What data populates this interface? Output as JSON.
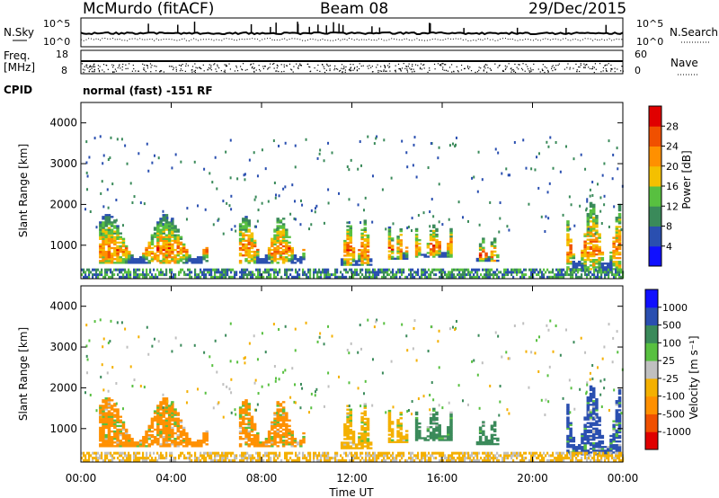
{
  "header": {
    "title": "McMurdo (fitACF)",
    "beam": "Beam 08",
    "date": "29/Dec/2015"
  },
  "noise_panel": {
    "left_label": "N.Sky",
    "right_label": "N.Search",
    "left_ticks": [
      "10^5",
      "10^0"
    ],
    "right_ticks": [
      "10^5",
      "10^0"
    ]
  },
  "freq_panel": {
    "left_label_1": "Freq.",
    "left_label_2": "[MHz]",
    "right_label": "Nave",
    "left_ticks": [
      "18",
      "8"
    ],
    "right_ticks": [
      "60",
      "0"
    ]
  },
  "cpid": {
    "label": "CPID",
    "value": "normal (fast) -151 RF"
  },
  "chart_data": [
    {
      "type": "heatmap",
      "quantity": "power",
      "xlabel": "",
      "ylabel": "Slant Range [km]",
      "xlim": [
        0,
        24
      ],
      "ylim": [
        180,
        4500
      ],
      "yticks": [
        "1000",
        "2000",
        "3000",
        "4000"
      ],
      "colorbar": {
        "label": "Power [dB]",
        "ticks": [
          "28",
          "24",
          "20",
          "16",
          "12",
          "8",
          "4"
        ],
        "colors": [
          "#1010ff",
          "#2a4fb0",
          "#3a8a5a",
          "#58c040",
          "#f4c000",
          "#ff9000",
          "#f05000",
          "#e00000"
        ]
      },
      "echo_regions": [
        {
          "t0": 0.8,
          "t1": 5.6,
          "r0": 550,
          "r1": 1750,
          "peak_r": 850,
          "vel_idx": 2
        },
        {
          "t0": 7.0,
          "t1": 9.9,
          "r0": 550,
          "r1": 1700,
          "peak_r": 900,
          "vel_idx": 2
        },
        {
          "t0": 11.5,
          "t1": 12.8,
          "r0": 500,
          "r1": 1600,
          "peak_r": 850,
          "vel_idx": 3
        },
        {
          "t0": 13.6,
          "t1": 14.4,
          "r0": 650,
          "r1": 1500,
          "peak_r": 900,
          "vel_idx": 3
        },
        {
          "t0": 14.8,
          "t1": 16.4,
          "r0": 700,
          "r1": 1500,
          "peak_r": 950,
          "vel_idx": 6
        },
        {
          "t0": 17.5,
          "t1": 18.4,
          "r0": 600,
          "r1": 1200,
          "peak_r": 750,
          "vel_idx": 6
        },
        {
          "t0": 21.5,
          "t1": 23.9,
          "r0": 350,
          "r1": 2050,
          "peak_r": 900,
          "vel_idx": 7
        }
      ]
    },
    {
      "type": "heatmap",
      "quantity": "velocity",
      "xlabel": "Time UT",
      "ylabel": "Slant Range [km]",
      "xlim": [
        0,
        24
      ],
      "ylim": [
        180,
        4500
      ],
      "xticks": [
        "00:00",
        "04:00",
        "08:00",
        "12:00",
        "16:00",
        "20:00",
        "00:00"
      ],
      "yticks": [
        "1000",
        "2000",
        "3000",
        "4000"
      ],
      "colorbar": {
        "label": "Velocity [m s⁻¹]",
        "ticks": [
          "1000",
          "500",
          "100",
          "25",
          "-25",
          "-100",
          "-500",
          "-1000"
        ],
        "colors": [
          "#e00000",
          "#f05000",
          "#ff9000",
          "#f4b000",
          "#c0c0c0",
          "#58c040",
          "#3a8a5a",
          "#2a4fb0",
          "#1010ff"
        ]
      }
    }
  ]
}
